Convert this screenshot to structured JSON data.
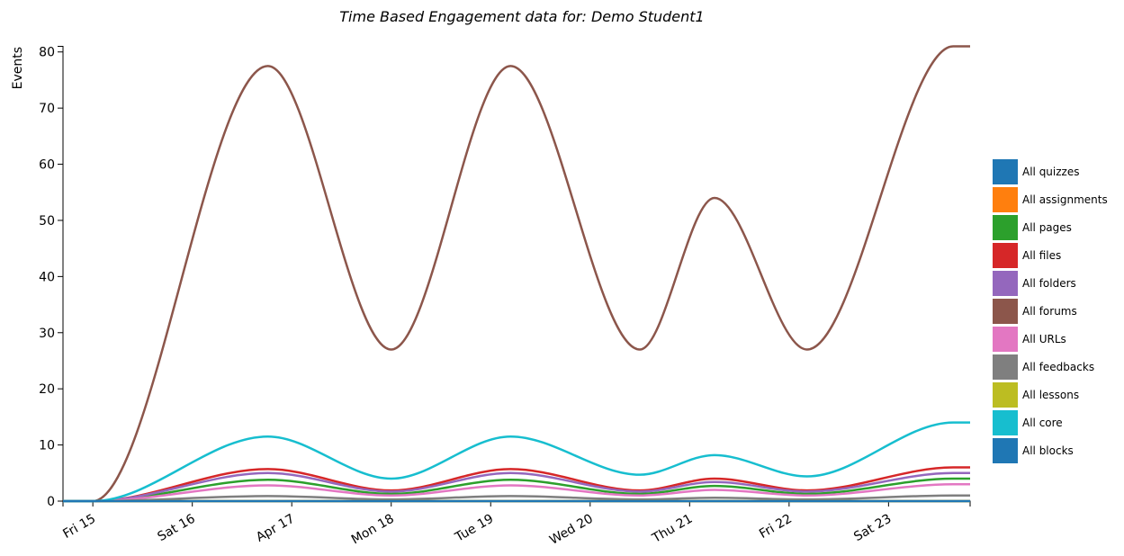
{
  "chart_data": {
    "type": "line",
    "title": "Time Based Engagement data for: Demo Student1",
    "y_label": "Events",
    "x": [
      14.7,
      15.0,
      16.76,
      18.0,
      19.2,
      20.5,
      21.25,
      22.18,
      23.65,
      23.82
    ],
    "xlim": [
      14.7,
      23.82
    ],
    "xticks": [
      {
        "value": 15,
        "label": "Fri 15"
      },
      {
        "value": 16,
        "label": "Sat 16"
      },
      {
        "value": 17,
        "label": "Apr 17"
      },
      {
        "value": 18,
        "label": "Mon 18"
      },
      {
        "value": 19,
        "label": "Tue 19"
      },
      {
        "value": 20,
        "label": "Wed 20"
      },
      {
        "value": 21,
        "label": "Thu 21"
      },
      {
        "value": 22,
        "label": "Fri 22"
      },
      {
        "value": 23,
        "label": "Sat 23"
      }
    ],
    "ylim": [
      0,
      81
    ],
    "yticks": [
      0,
      10,
      20,
      30,
      40,
      50,
      60,
      70,
      80
    ],
    "series": [
      {
        "name": "All quizzes",
        "color": "#1f77b4",
        "values": [
          0,
          0,
          0,
          0,
          0,
          0,
          0,
          0,
          0,
          0
        ]
      },
      {
        "name": "All assignments",
        "color": "#ff7f0e",
        "values": [
          0,
          0,
          0,
          0,
          0,
          0,
          0,
          0,
          0,
          0
        ]
      },
      {
        "name": "All pages",
        "color": "#2ca02c",
        "values": [
          0,
          0,
          3.8,
          1.3,
          3.8,
          1.3,
          2.7,
          1.3,
          4,
          4
        ]
      },
      {
        "name": "All files",
        "color": "#d62728",
        "values": [
          0,
          0,
          5.7,
          1.9,
          5.7,
          1.9,
          4,
          1.9,
          6,
          6
        ]
      },
      {
        "name": "All folders",
        "color": "#9467bd",
        "values": [
          0,
          0,
          5,
          1.7,
          5,
          1.7,
          3.4,
          1.7,
          5,
          5
        ]
      },
      {
        "name": "All forums",
        "color": "#8c564b",
        "values": [
          0,
          0,
          77.5,
          27,
          77.5,
          27,
          54,
          27,
          81,
          81
        ]
      },
      {
        "name": "All URLs",
        "color": "#e377c2",
        "values": [
          0,
          0,
          2.8,
          1,
          2.8,
          1,
          2,
          1,
          3,
          3
        ]
      },
      {
        "name": "All feedbacks",
        "color": "#7f7f7f",
        "values": [
          0,
          0,
          0.9,
          0.3,
          0.9,
          0.3,
          0.6,
          0.3,
          1,
          1
        ]
      },
      {
        "name": "All lessons",
        "color": "#bcbd22",
        "values": [
          0,
          0,
          0,
          0,
          0,
          0,
          0,
          0,
          0,
          0
        ]
      },
      {
        "name": "All core",
        "color": "#17becf",
        "values": [
          0,
          0,
          11.5,
          4,
          11.5,
          4.7,
          8.2,
          4.4,
          14,
          14
        ]
      },
      {
        "name": "All blocks",
        "color": "#1f77b4",
        "values": [
          0,
          0,
          0,
          0,
          0,
          0,
          0,
          0,
          0,
          0
        ]
      }
    ]
  }
}
